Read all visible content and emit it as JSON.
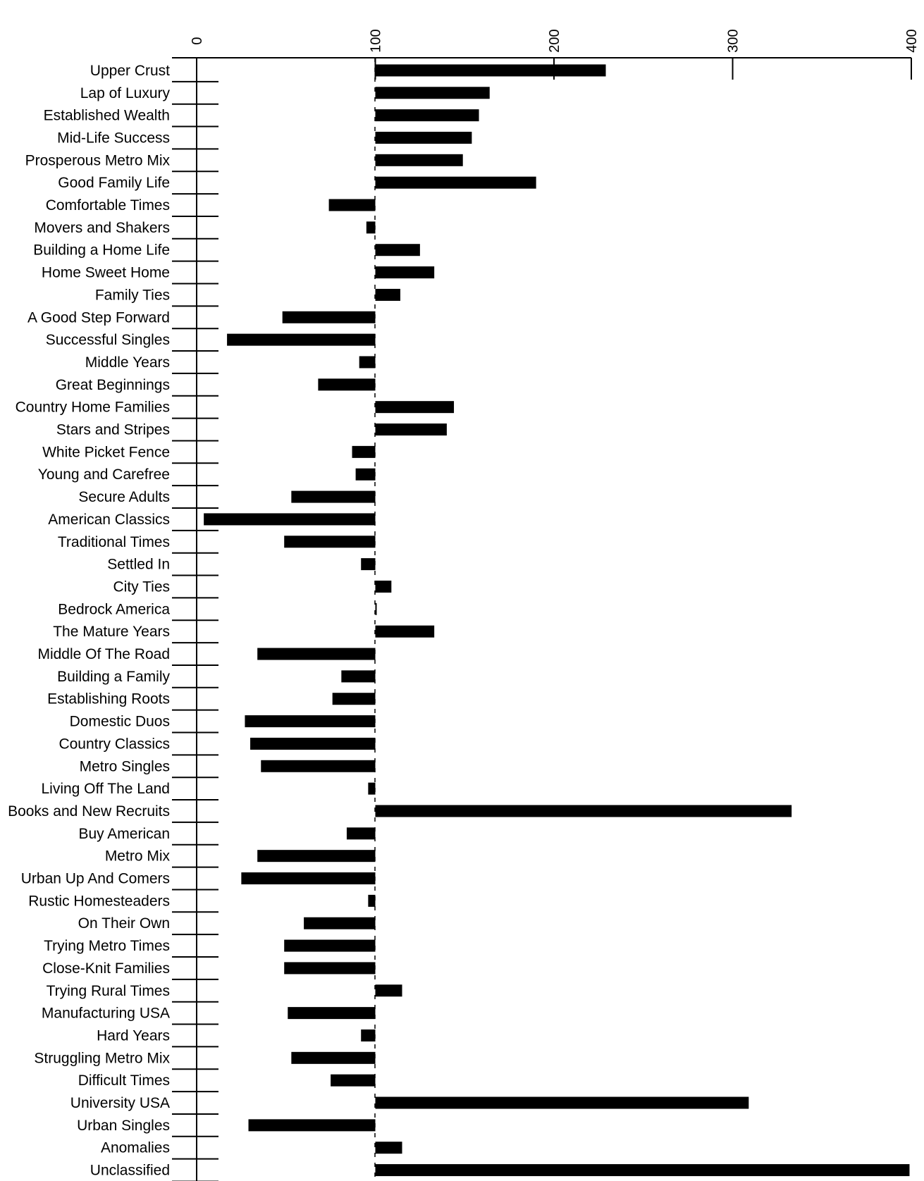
{
  "chart_data": {
    "type": "bar",
    "orientation": "horizontal",
    "baseline": 100,
    "xlim": [
      0,
      400
    ],
    "x_ticks": [
      0,
      100,
      200,
      300,
      400
    ],
    "x_tick_labels": [
      "0",
      "100",
      "200",
      "300",
      "400"
    ],
    "grid": false,
    "categories": [
      "Upper Crust",
      "Lap of Luxury",
      "Established Wealth",
      "Mid-Life Success",
      "Prosperous Metro Mix",
      "Good Family Life",
      "Comfortable Times",
      "Movers and Shakers",
      "Building a Home Life",
      "Home Sweet Home",
      "Family Ties",
      "A Good Step Forward",
      "Successful Singles",
      "Middle Years",
      "Great Beginnings",
      "Country Home Families",
      "Stars and Stripes",
      "White Picket Fence",
      "Young and Carefree",
      "Secure Adults",
      "American Classics",
      "Traditional Times",
      "Settled In",
      "City Ties",
      "Bedrock America",
      "The Mature Years",
      "Middle Of The Road",
      "Building a Family",
      "Establishing Roots",
      "Domestic Duos",
      "Country Classics",
      "Metro Singles",
      "Living Off The Land",
      "Books and New Recruits",
      "Buy American",
      "Metro Mix",
      "Urban Up And Comers",
      "Rustic Homesteaders",
      "On Their Own",
      "Trying Metro Times",
      "Close-Knit Families",
      "Trying Rural Times",
      "Manufacturing USA",
      "Hard Years",
      "Struggling Metro Mix",
      "Difficult Times",
      "University USA",
      "Urban Singles",
      "Anomalies",
      "Unclassified"
    ],
    "values": [
      229,
      164,
      158,
      154,
      149,
      190,
      74,
      95,
      125,
      133,
      114,
      48,
      17,
      91,
      68,
      144,
      140,
      87,
      89,
      53,
      4,
      49,
      92,
      109,
      100,
      133,
      34,
      81,
      76,
      27,
      30,
      36,
      96,
      333,
      84,
      34,
      25,
      96,
      60,
      49,
      49,
      115,
      51,
      92,
      53,
      75,
      309,
      29,
      115,
      399
    ]
  }
}
